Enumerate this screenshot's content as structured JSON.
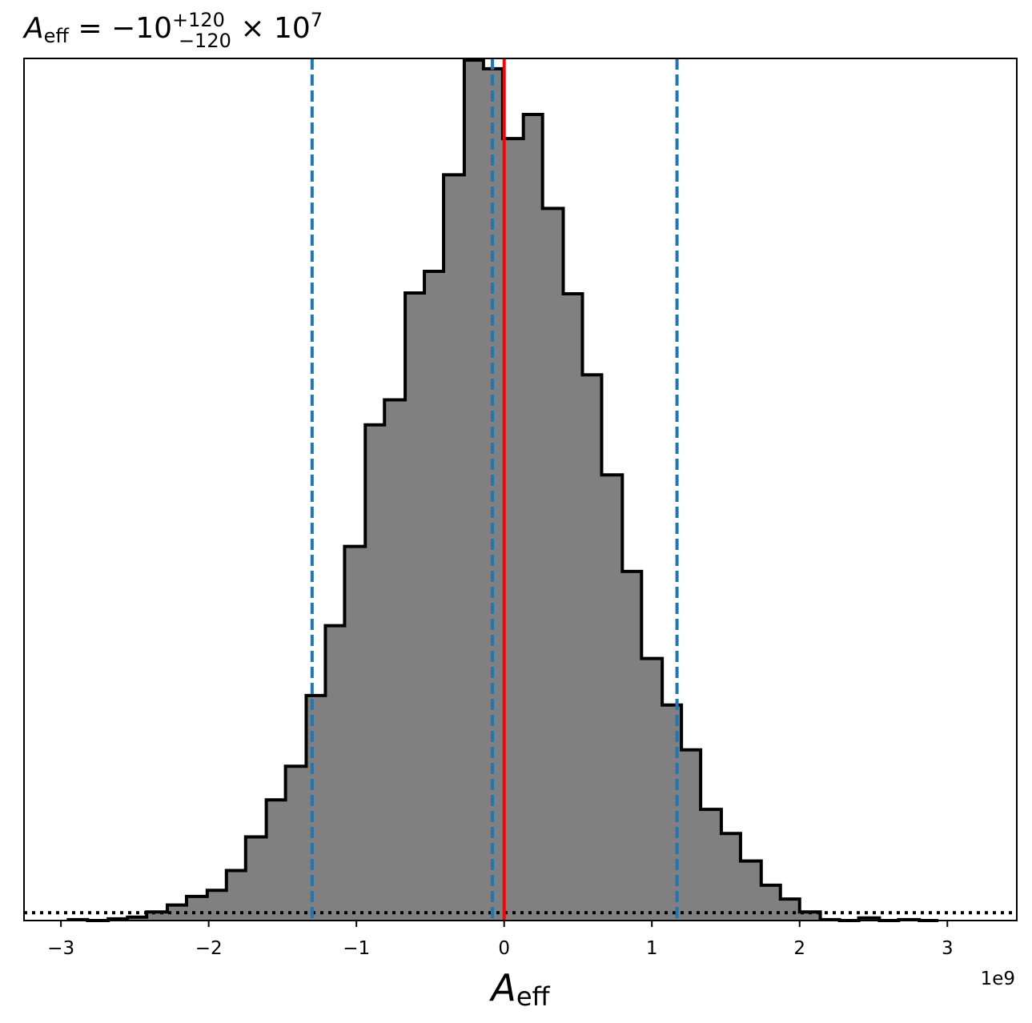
{
  "chart_data": {
    "type": "bar",
    "title": {
      "symbol": "A",
      "subscript": "eff",
      "equals": "=",
      "value": "−10",
      "upper": "+120",
      "lower": "−120",
      "times": "×",
      "base": "10",
      "exponent": "7"
    },
    "xlabel": {
      "symbol": "A",
      "subscript": "eff"
    },
    "offset_text": "1e9",
    "xlim": [
      -3.25,
      3.47
    ],
    "ylim": [
      0,
      1.0
    ],
    "x_ticks": [
      -3,
      -2,
      -1,
      0,
      1,
      2,
      3
    ],
    "x_tick_labels": [
      "−3",
      "−2",
      "−1",
      "0",
      "1",
      "2",
      "3"
    ],
    "x_unit_note": "values in units of 1e9",
    "bins": {
      "edges": [
        -2.95,
        -2.82,
        -2.68,
        -2.55,
        -2.42,
        -2.28,
        -2.15,
        -2.01,
        -1.88,
        -1.75,
        -1.61,
        -1.48,
        -1.34,
        -1.21,
        -1.08,
        -0.94,
        -0.81,
        -0.67,
        -0.54,
        -0.41,
        -0.27,
        -0.14,
        -0.01,
        0.13,
        0.26,
        0.4,
        0.53,
        0.66,
        0.8,
        0.93,
        1.07,
        1.2,
        1.33,
        1.47,
        1.6,
        1.74,
        1.87,
        2.0,
        2.14,
        2.27,
        2.4,
        2.54,
        2.67,
        2.81,
        2.94
      ],
      "heights": [
        0.001,
        0.0,
        0.002,
        0.004,
        0.01,
        0.018,
        0.028,
        0.035,
        0.058,
        0.097,
        0.14,
        0.179,
        0.261,
        0.342,
        0.434,
        0.575,
        0.604,
        0.728,
        0.753,
        0.865,
        0.998,
        0.988,
        0.907,
        0.935,
        0.826,
        0.727,
        0.633,
        0.517,
        0.405,
        0.304,
        0.25,
        0.198,
        0.129,
        0.101,
        0.069,
        0.041,
        0.025,
        0.01,
        0.001,
        0.0,
        0.003,
        0.0,
        0.001,
        0.0
      ]
    },
    "vlines": [
      {
        "x": 0.0,
        "style": "solid",
        "color": "#ff0000"
      },
      {
        "x": -1.3,
        "style": "dashed",
        "color": "#1f77b4"
      },
      {
        "x": -0.08,
        "style": "dashed",
        "color": "#1f77b4"
      },
      {
        "x": 1.17,
        "style": "dashed",
        "color": "#1f77b4"
      }
    ],
    "hline": {
      "y": 0.009,
      "style": "dotted",
      "color": "#000000"
    },
    "colors": {
      "fill": "#808080",
      "edge": "#000000"
    },
    "grid": false,
    "y_ticks_shown": false
  }
}
